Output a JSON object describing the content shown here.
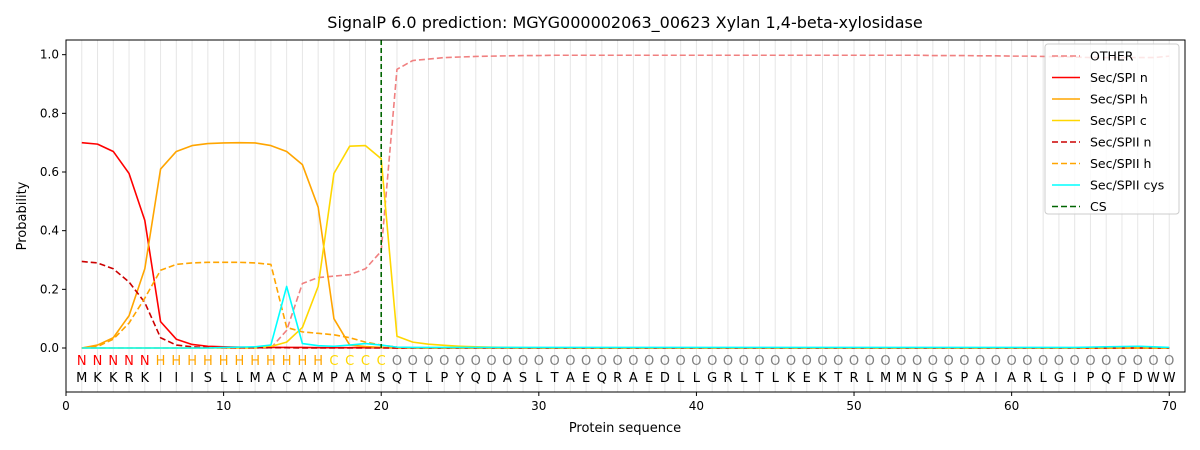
{
  "chart_data": {
    "type": "line",
    "title": "SignalP 6.0 prediction: MGYG000002063_00623 Xylan 1,4-beta-xylosidase",
    "xlabel": "Protein sequence",
    "ylabel": "Probability",
    "xlim": [
      0,
      71
    ],
    "ylim": [
      -0.15,
      1.05
    ],
    "xticks": [
      0,
      10,
      20,
      30,
      40,
      50,
      60,
      70
    ],
    "yticks": [
      0.0,
      0.2,
      0.4,
      0.6,
      0.8,
      1.0
    ],
    "xtick_labels": [
      "0",
      "10",
      "20",
      "30",
      "40",
      "50",
      "60",
      "70"
    ],
    "ytick_labels": [
      "0.0",
      "0.2",
      "0.4",
      "0.6",
      "0.8",
      "1.0"
    ],
    "grid": "vertical lines at each residue position",
    "legend_position": "top-right",
    "sequence": [
      "M",
      "K",
      "K",
      "R",
      "K",
      "I",
      "I",
      "I",
      "S",
      "L",
      "L",
      "M",
      "A",
      "C",
      "A",
      "M",
      "P",
      "A",
      "M",
      "S",
      "Q",
      "T",
      "L",
      "P",
      "Y",
      "Q",
      "D",
      "A",
      "S",
      "L",
      "T",
      "A",
      "E",
      "Q",
      "R",
      "A",
      "E",
      "D",
      "L",
      "L",
      "G",
      "R",
      "L",
      "T",
      "L",
      "K",
      "E",
      "K",
      "T",
      "R",
      "L",
      "M",
      "M",
      "N",
      "G",
      "S",
      "P",
      "A",
      "I",
      "A",
      "R",
      "L",
      "G",
      "I",
      "P",
      "Q",
      "F",
      "D",
      "W",
      "W"
    ],
    "predicted_states": [
      "N",
      "N",
      "N",
      "N",
      "N",
      "H",
      "H",
      "H",
      "H",
      "H",
      "H",
      "H",
      "H",
      "H",
      "H",
      "H",
      "C",
      "C",
      "C",
      "C",
      "O",
      "O",
      "O",
      "O",
      "O",
      "O",
      "O",
      "O",
      "O",
      "O",
      "O",
      "O",
      "O",
      "O",
      "O",
      "O",
      "O",
      "O",
      "O",
      "O",
      "O",
      "O",
      "O",
      "O",
      "O",
      "O",
      "O",
      "O",
      "O",
      "O",
      "O",
      "O",
      "O",
      "O",
      "O",
      "O",
      "O",
      "O",
      "O",
      "O",
      "O",
      "O",
      "O",
      "O",
      "O",
      "O",
      "O",
      "O",
      "O",
      "O"
    ],
    "state_colors": {
      "N": "#ff0000",
      "H": "#ffa500",
      "C": "#ffd700",
      "O": "#808080"
    },
    "cleavage_site": 20,
    "series": [
      {
        "name": "OTHER",
        "color": "#f08080",
        "dash": "dashed",
        "values": [
          0.0,
          0.0,
          0.0,
          0.0,
          0.0,
          0.0,
          0.0,
          0.0,
          0.0,
          0.0,
          0.0,
          0.0,
          0.0,
          0.06,
          0.22,
          0.24,
          0.245,
          0.25,
          0.27,
          0.33,
          0.95,
          0.98,
          0.985,
          0.99,
          0.992,
          0.994,
          0.995,
          0.996,
          0.997,
          0.997,
          0.998,
          0.998,
          0.998,
          0.998,
          0.998,
          0.998,
          0.998,
          0.998,
          0.998,
          0.998,
          0.998,
          0.998,
          0.998,
          0.998,
          0.998,
          0.998,
          0.998,
          0.998,
          0.998,
          0.998,
          0.998,
          0.998,
          0.998,
          0.998,
          0.997,
          0.997,
          0.997,
          0.996,
          0.996,
          0.995,
          0.995,
          0.994,
          0.993,
          0.992,
          0.99,
          0.99,
          0.99,
          0.99,
          0.99,
          0.995
        ]
      },
      {
        "name": "Sec/SPI n",
        "color": "#ff0000",
        "dash": "solid",
        "values": [
          0.7,
          0.695,
          0.67,
          0.595,
          0.435,
          0.09,
          0.03,
          0.012,
          0.006,
          0.004,
          0.003,
          0.002,
          0.002,
          0.002,
          0.002,
          0.001,
          0.001,
          0.001,
          0.001,
          0.001,
          0.0,
          0.0,
          0.0,
          0.0,
          0.0,
          0.0,
          0.0,
          0.0,
          0.0,
          0.0,
          0.0,
          0.0,
          0.0,
          0.0,
          0.0,
          0.0,
          0.0,
          0.0,
          0.0,
          0.0,
          0.0,
          0.0,
          0.0,
          0.0,
          0.0,
          0.0,
          0.0,
          0.0,
          0.0,
          0.0,
          0.0,
          0.0,
          0.0,
          0.0,
          0.0,
          0.0,
          0.0,
          0.0,
          0.0,
          0.0,
          0.0,
          0.0,
          0.0,
          0.0,
          0.0,
          0.0,
          0.0,
          0.0,
          0.0,
          0.0
        ]
      },
      {
        "name": "Sec/SPI h",
        "color": "#ffa500",
        "dash": "solid",
        "values": [
          0.0,
          0.01,
          0.035,
          0.11,
          0.27,
          0.61,
          0.67,
          0.69,
          0.697,
          0.699,
          0.7,
          0.699,
          0.69,
          0.67,
          0.625,
          0.48,
          0.1,
          0.01,
          0.005,
          0.002,
          0.0,
          0.0,
          0.0,
          0.0,
          0.0,
          0.0,
          0.0,
          0.0,
          0.0,
          0.0,
          0.0,
          0.0,
          0.0,
          0.0,
          0.0,
          0.0,
          0.0,
          0.0,
          0.0,
          0.0,
          0.0,
          0.0,
          0.0,
          0.0,
          0.0,
          0.0,
          0.0,
          0.0,
          0.0,
          0.0,
          0.0,
          0.0,
          0.0,
          0.0,
          0.0,
          0.0,
          0.0,
          0.0,
          0.0,
          0.0,
          0.0,
          0.0,
          0.0,
          0.0,
          0.0,
          0.0,
          0.0,
          0.0,
          0.0,
          0.0
        ]
      },
      {
        "name": "Sec/SPI c",
        "color": "#ffd700",
        "dash": "solid",
        "values": [
          0.0,
          0.0,
          0.0,
          0.0,
          0.0,
          0.0,
          0.0,
          0.0,
          0.0,
          0.0,
          0.0,
          0.0,
          0.005,
          0.02,
          0.07,
          0.21,
          0.595,
          0.688,
          0.69,
          0.645,
          0.04,
          0.02,
          0.013,
          0.009,
          0.006,
          0.004,
          0.003,
          0.002,
          0.001,
          0.001,
          0.0,
          0.0,
          0.0,
          0.0,
          0.0,
          0.0,
          0.0,
          0.0,
          0.0,
          0.0,
          0.0,
          0.0,
          0.0,
          0.0,
          0.0,
          0.0,
          0.0,
          0.0,
          0.0,
          0.0,
          0.0,
          0.0,
          0.0,
          0.0,
          0.0,
          0.0,
          0.0,
          0.0,
          0.0,
          0.0,
          0.0,
          0.0,
          0.0,
          0.0,
          0.0,
          0.0,
          0.0,
          0.0,
          0.0,
          0.0
        ]
      },
      {
        "name": "Sec/SPII n",
        "color": "#cc0000",
        "dash": "dashed",
        "values": [
          0.295,
          0.29,
          0.27,
          0.225,
          0.155,
          0.035,
          0.01,
          0.004,
          0.002,
          0.001,
          0.001,
          0.001,
          0.001,
          0.001,
          0.0,
          0.0,
          0.0,
          0.0,
          0.0,
          0.0,
          0.0,
          0.0,
          0.0,
          0.0,
          0.0,
          0.0,
          0.0,
          0.0,
          0.0,
          0.0,
          0.0,
          0.0,
          0.0,
          0.0,
          0.0,
          0.0,
          0.0,
          0.0,
          0.0,
          0.0,
          0.0,
          0.0,
          0.0,
          0.0,
          0.0,
          0.0,
          0.0,
          0.0,
          0.0,
          0.0,
          0.0,
          0.0,
          0.0,
          0.0,
          0.0,
          0.0,
          0.0,
          0.0,
          0.0,
          0.0,
          0.0,
          0.0,
          0.0,
          0.0,
          0.0,
          0.0,
          0.0,
          0.0,
          0.0,
          0.0
        ]
      },
      {
        "name": "Sec/SPII h",
        "color": "#ffa500",
        "dash": "dashed",
        "values": [
          0.0,
          0.005,
          0.03,
          0.085,
          0.17,
          0.265,
          0.285,
          0.29,
          0.292,
          0.292,
          0.292,
          0.29,
          0.285,
          0.07,
          0.055,
          0.05,
          0.045,
          0.035,
          0.02,
          0.01,
          0.003,
          0.001,
          0.0,
          0.0,
          0.0,
          0.0,
          0.0,
          0.0,
          0.0,
          0.0,
          0.0,
          0.0,
          0.0,
          0.0,
          0.0,
          0.0,
          0.0,
          0.0,
          0.0,
          0.0,
          0.0,
          0.0,
          0.0,
          0.0,
          0.0,
          0.0,
          0.0,
          0.0,
          0.0,
          0.0,
          0.0,
          0.0,
          0.0,
          0.0,
          0.0,
          0.0,
          0.0,
          0.0,
          0.0,
          0.0,
          0.0,
          0.0,
          0.0,
          0.0,
          0.0,
          0.0,
          0.0,
          0.0,
          0.0,
          0.0
        ]
      },
      {
        "name": "Sec/SPII cys",
        "color": "#00ffff",
        "dash": "solid",
        "values": [
          0.0,
          0.0,
          0.0,
          0.0,
          0.0,
          0.0,
          0.0,
          0.0,
          0.0,
          0.002,
          0.003,
          0.004,
          0.01,
          0.21,
          0.015,
          0.008,
          0.006,
          0.01,
          0.015,
          0.01,
          0.003,
          0.002,
          0.002,
          0.002,
          0.002,
          0.002,
          0.002,
          0.002,
          0.002,
          0.002,
          0.002,
          0.002,
          0.002,
          0.002,
          0.002,
          0.002,
          0.002,
          0.002,
          0.002,
          0.002,
          0.002,
          0.002,
          0.002,
          0.002,
          0.002,
          0.002,
          0.002,
          0.002,
          0.002,
          0.002,
          0.002,
          0.002,
          0.002,
          0.002,
          0.002,
          0.002,
          0.002,
          0.002,
          0.002,
          0.002,
          0.002,
          0.002,
          0.002,
          0.002,
          0.003,
          0.004,
          0.005,
          0.006,
          0.004,
          0.002
        ]
      }
    ],
    "cs_series": {
      "name": "CS",
      "color": "#006400",
      "dash": "dashed"
    }
  }
}
